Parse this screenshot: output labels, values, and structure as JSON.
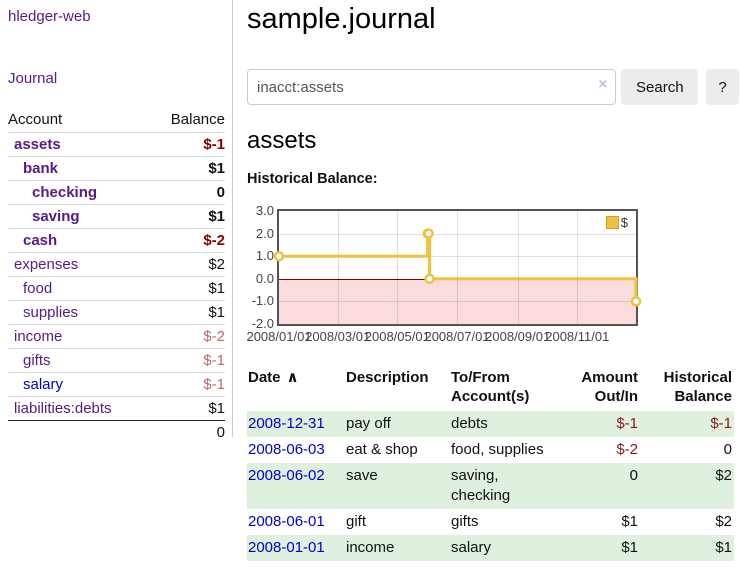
{
  "app": {
    "title": "hledger-web"
  },
  "nav": {
    "journal_label": "Journal"
  },
  "sidebar": {
    "table_headers": {
      "account": "Account",
      "balance": "Balance"
    },
    "accounts": [
      {
        "name": "assets",
        "balance": "$-1",
        "level": 1,
        "bold": true,
        "negative": "strong"
      },
      {
        "name": "bank",
        "balance": "$1",
        "level": 2,
        "bold": true,
        "negative": null
      },
      {
        "name": "checking",
        "balance": "0",
        "level": 3,
        "bold": true,
        "negative": null
      },
      {
        "name": "saving",
        "balance": "$1",
        "level": 3,
        "bold": true,
        "negative": null
      },
      {
        "name": "cash",
        "balance": "$-2",
        "level": 2,
        "bold": true,
        "negative": "strong"
      },
      {
        "name": "expenses",
        "balance": "$2",
        "level": 1,
        "bold": false,
        "negative": null
      },
      {
        "name": "food",
        "balance": "$1",
        "level": 2,
        "bold": false,
        "negative": null
      },
      {
        "name": "supplies",
        "balance": "$1",
        "level": 2,
        "bold": false,
        "negative": null
      },
      {
        "name": "income",
        "balance": "$-2",
        "level": 1,
        "bold": false,
        "negative": "muted"
      },
      {
        "name": "gifts",
        "balance": "$-1",
        "level": 2,
        "bold": false,
        "negative": "muted"
      },
      {
        "name": "salary",
        "balance": "$-1",
        "level": 2,
        "bold": false,
        "negative": "muted",
        "unvisited": true
      },
      {
        "name": "liabilities:debts",
        "balance": "$1",
        "level": 1,
        "bold": false,
        "negative": null
      }
    ],
    "total": "0"
  },
  "header": {
    "title": "sample.journal"
  },
  "search": {
    "value": "inacct:assets",
    "clear_icon": "×",
    "button_label": "Search",
    "help_label": "?"
  },
  "account_page": {
    "heading": "assets",
    "chart_label": "Historical Balance:"
  },
  "chart_data": {
    "type": "line",
    "style": "step",
    "title": "Historical Balance",
    "series": [
      {
        "name": "$",
        "color": "#edc240",
        "points": [
          [
            "2008-01-01",
            1.0
          ],
          [
            "2008-06-01",
            2.0
          ],
          [
            "2008-06-02",
            2.0
          ],
          [
            "2008-06-03",
            0.0
          ],
          [
            "2008-12-31",
            -1.0
          ]
        ]
      }
    ],
    "x_range": [
      "2008-01-01",
      "2008-12-31"
    ],
    "ylim": [
      -2,
      3
    ],
    "y_ticks": [
      "3.0",
      "2.0",
      "1.0",
      "0.0",
      "-1.0",
      "-2.0"
    ],
    "x_ticks": [
      "2008/01/01",
      "2008/03/01",
      "2008/05/01",
      "2008/07/01",
      "2008/09/01",
      "2008/11/01"
    ],
    "legend": "$",
    "legend_position": "top-right",
    "grid": true,
    "negative_region_color": "#fadcdc",
    "zero_line_color": "#800000"
  },
  "register": {
    "sort_icon": "∧",
    "columns": [
      {
        "lines": [
          "Date"
        ],
        "align": "left",
        "sorted": true
      },
      {
        "lines": [
          "Description"
        ],
        "align": "left"
      },
      {
        "lines": [
          "To/From",
          "Account(s)"
        ],
        "align": "left"
      },
      {
        "lines": [
          "Amount",
          "Out/In"
        ],
        "align": "right"
      },
      {
        "lines": [
          "Historical",
          "Balance"
        ],
        "align": "right"
      }
    ],
    "rows": [
      {
        "date": "2008-12-31",
        "description": "pay off",
        "accounts": "debts",
        "amount": "$-1",
        "amount_neg": true,
        "balance": "$-1",
        "balance_neg": true
      },
      {
        "date": "2008-06-03",
        "description": "eat & shop",
        "accounts": "food, supplies",
        "amount": "$-2",
        "amount_neg": true,
        "balance": "0",
        "balance_neg": false
      },
      {
        "date": "2008-06-02",
        "description": "save",
        "accounts": "saving,\nchecking",
        "amount": "0",
        "amount_neg": false,
        "balance": "$2",
        "balance_neg": false
      },
      {
        "date": "2008-06-01",
        "description": "gift",
        "accounts": "gifts",
        "amount": "$1",
        "amount_neg": false,
        "balance": "$2",
        "balance_neg": false
      },
      {
        "date": "2008-01-01",
        "description": "income",
        "accounts": "salary",
        "amount": "$1",
        "amount_neg": false,
        "balance": "$1",
        "balance_neg": false
      }
    ]
  },
  "colors": {
    "accent_purple": "#551a8b",
    "link_blue": "#0000cc",
    "negative_strong": "#8b0000",
    "negative_muted": "#c06868",
    "table_negative": "#8b1a1a",
    "row_green": "#dff0df",
    "chart_line": "#edc240",
    "chart_negative_fill": "#fadcdc",
    "chart_zero_line": "#800000"
  }
}
